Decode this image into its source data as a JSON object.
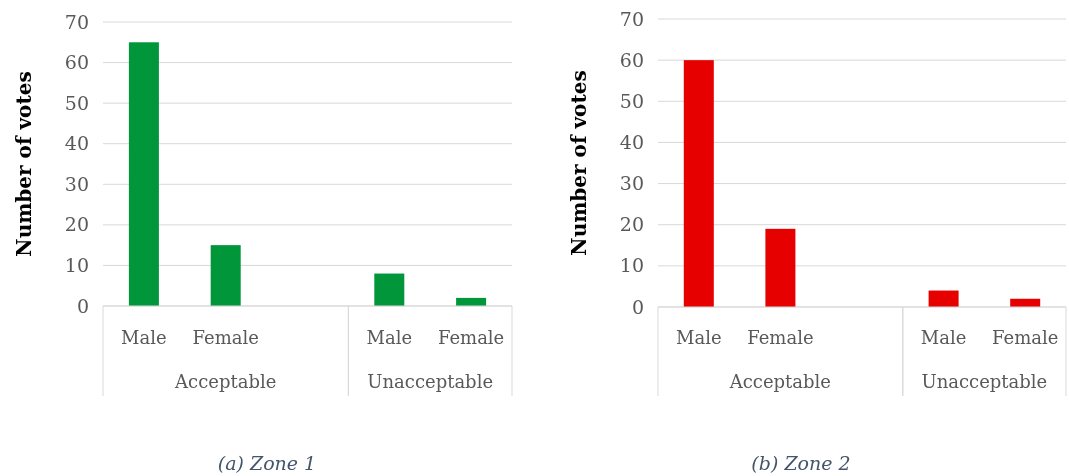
{
  "chart_data": [
    {
      "type": "bar",
      "title": "(a)  Zone 1",
      "ylabel": "Number of votes",
      "categories": [
        "Male",
        "Female",
        null,
        "Male",
        "Female"
      ],
      "values": [
        65,
        15,
        null,
        8,
        2
      ],
      "color": "#009639",
      "ylim": [
        0,
        70
      ],
      "yticks": [
        0,
        10,
        20,
        30,
        40,
        50,
        60,
        70
      ],
      "grid": "y",
      "annotations": [
        "Acceptable",
        "Unacceptable"
      ]
    },
    {
      "type": "bar",
      "title": "(b) Zone 2",
      "ylabel": "Number of votes",
      "categories": [
        "Male",
        "Female",
        null,
        "Male",
        "Female"
      ],
      "values": [
        60,
        19,
        null,
        4,
        2
      ],
      "color": "#e60000",
      "ylim": [
        0,
        70
      ],
      "yticks": [
        0,
        10,
        20,
        30,
        40,
        50,
        60,
        70
      ],
      "grid": "y",
      "annotations": [
        "Acceptable",
        "Unacceptable"
      ]
    }
  ]
}
